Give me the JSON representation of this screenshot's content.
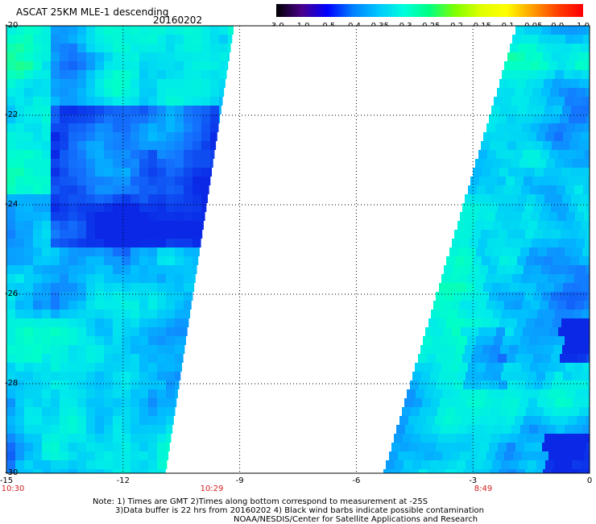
{
  "header": {
    "title": "ASCAT 25KM MLE-1 descending",
    "date": "20160202"
  },
  "colorbar": {
    "labels": [
      "-3.0",
      "-1.0",
      "-0.5",
      "-0.4",
      "-0.35",
      "-0.3",
      "-0.25",
      "-0.2",
      "-0.15",
      "-0.1",
      "-0.05",
      "0.0",
      "1.0"
    ],
    "colors": [
      "#000000",
      "#4b008c",
      "#0000ff",
      "#0080ff",
      "#00c8ff",
      "#00ffdc",
      "#00ff80",
      "#80ff00",
      "#e0ff00",
      "#ffff00",
      "#ffa000",
      "#ff4000",
      "#ff0000"
    ]
  },
  "map": {
    "lon_range": [
      -15,
      0
    ],
    "lat_range": [
      -30,
      -20
    ],
    "x_ticks": [
      "-15",
      "-12",
      "-9",
      "-6",
      "-3",
      "0"
    ],
    "y_ticks": [
      "-20",
      "-22",
      "-24",
      "-26",
      "-28",
      "-30"
    ],
    "pass_times": [
      "10:30",
      "10:29",
      "8:49"
    ]
  },
  "notes": {
    "line1": "Note: 1) Times are GMT 2)Times along bottom correspond to measurement at -25S",
    "line2": "3)Data buffer is 22 hrs from 20160202 4) Black wind barbs indicate possible contamination",
    "line3": "NOAA/NESDIS/Center for Satellite Applications and Research"
  }
}
